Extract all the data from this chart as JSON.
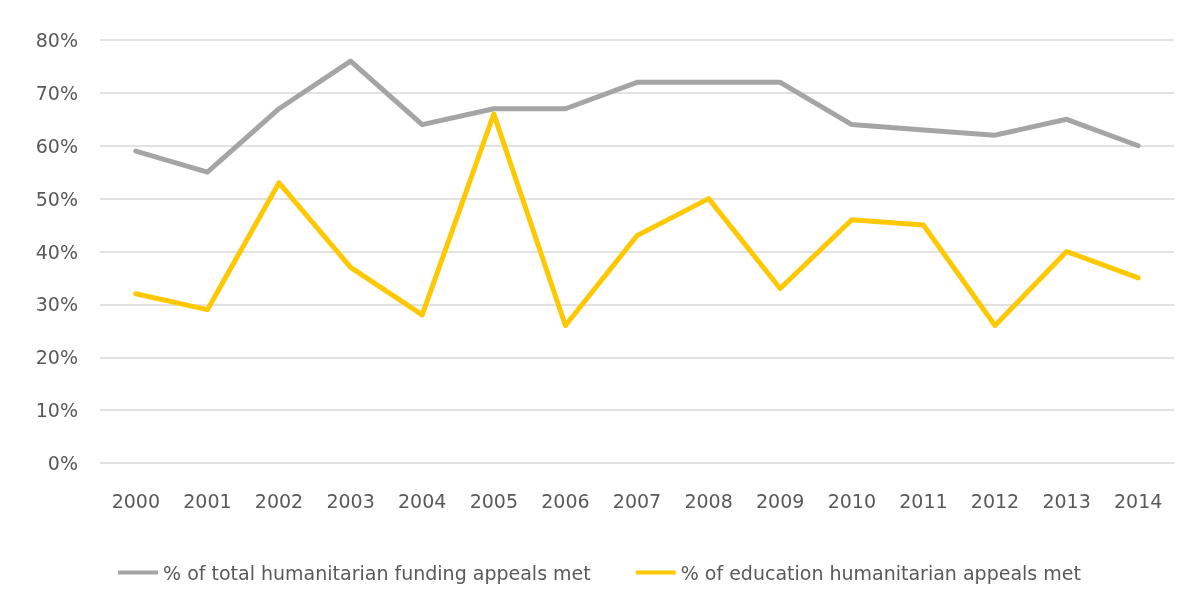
{
  "chart_data": {
    "type": "line",
    "categories": [
      "2000",
      "2001",
      "2002",
      "2003",
      "2004",
      "2005",
      "2006",
      "2007",
      "2008",
      "2009",
      "2010",
      "2011",
      "2012",
      "2013",
      "2014"
    ],
    "series": [
      {
        "name": "% of total humanitarian funding appeals met",
        "color": "#a5a5a5",
        "values": [
          59,
          55,
          67,
          76,
          64,
          67,
          67,
          72,
          72,
          72,
          64,
          63,
          62,
          65,
          60
        ]
      },
      {
        "name": "% of education humanitarian appeals met",
        "color": "#ffc800",
        "values": [
          32,
          29,
          53,
          37,
          28,
          66,
          26,
          43,
          50,
          33,
          46,
          45,
          26,
          40,
          35
        ]
      }
    ],
    "ylim": [
      0,
      80
    ],
    "yticks": [
      {
        "value": 0,
        "label": "0%"
      },
      {
        "value": 10,
        "label": "10%"
      },
      {
        "value": 20,
        "label": "20%"
      },
      {
        "value": 30,
        "label": "30%"
      },
      {
        "value": 40,
        "label": "40%"
      },
      {
        "value": 50,
        "label": "50%"
      },
      {
        "value": 60,
        "label": "60%"
      },
      {
        "value": 70,
        "label": "70%"
      },
      {
        "value": 80,
        "label": "80%"
      }
    ],
    "grid": "y",
    "legend": "bottom",
    "marker": "none",
    "line_style": "solid"
  }
}
